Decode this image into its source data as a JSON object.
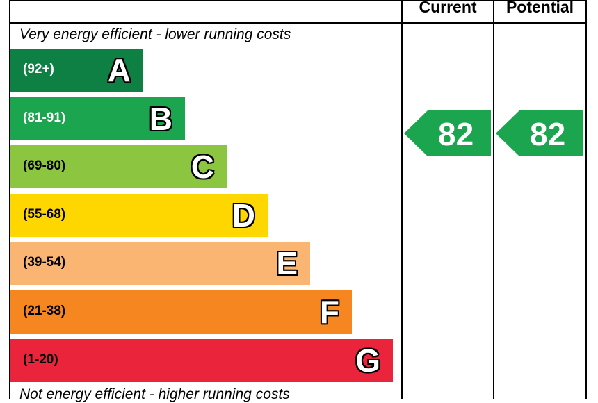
{
  "chart_data": {
    "type": "bar",
    "top_caption": "Very energy efficient - lower running costs",
    "bottom_caption": "Not energy efficient - higher running costs",
    "columns": [
      "Current",
      "Potential"
    ],
    "bands": [
      {
        "letter": "A",
        "range": "(92+)",
        "color": "#0e8044"
      },
      {
        "letter": "B",
        "range": "(81-91)",
        "color": "#1aa54e"
      },
      {
        "letter": "C",
        "range": "(69-80)",
        "color": "#8cc540"
      },
      {
        "letter": "D",
        "range": "(55-68)",
        "color": "#fed700"
      },
      {
        "letter": "E",
        "range": "(39-54)",
        "color": "#fbb573"
      },
      {
        "letter": "F",
        "range": "(21-38)",
        "color": "#f58620"
      },
      {
        "letter": "G",
        "range": "(1-20)",
        "color": "#e9243b"
      }
    ],
    "ratings": {
      "current": {
        "value": "82",
        "band": "B",
        "color": "#1aa54e"
      },
      "potential": {
        "value": "82",
        "band": "B",
        "color": "#1aa54e"
      }
    }
  }
}
